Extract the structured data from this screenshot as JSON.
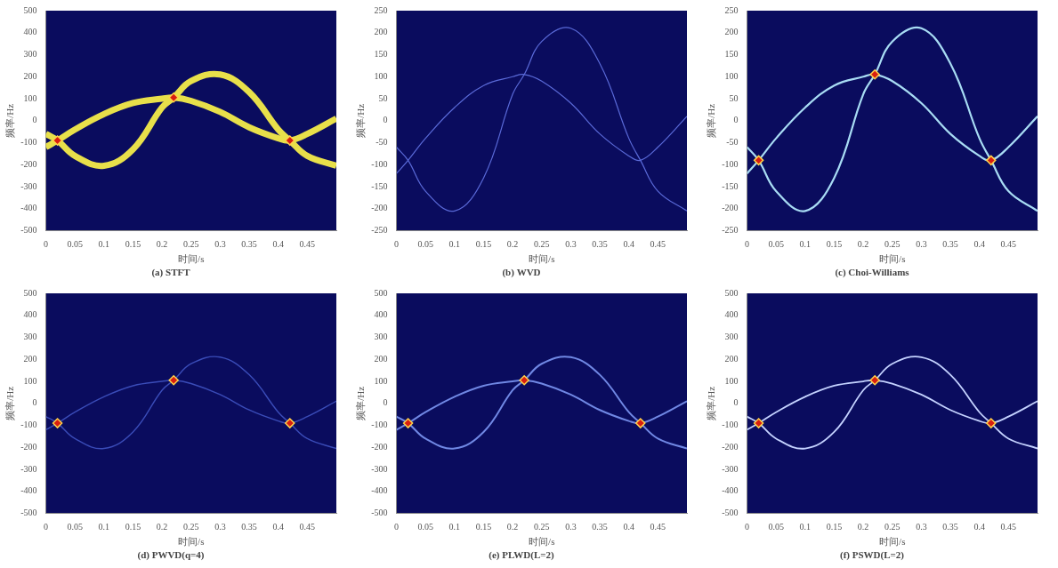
{
  "chart_data": [
    {
      "type": "line",
      "title": "(a) STFT",
      "x_label": "时间/s",
      "y_label": "频率/Hz",
      "xlim": [
        0,
        0.5
      ],
      "xticks": [
        0,
        0.05,
        0.1,
        0.15,
        0.2,
        0.25,
        0.3,
        0.35,
        0.4,
        0.45
      ],
      "ylim": [
        -500,
        500
      ],
      "yticks": [
        -500,
        -400,
        -300,
        -200,
        -100,
        0,
        100,
        200,
        300,
        400,
        500
      ],
      "grid": false,
      "x": [
        0,
        0.02,
        0.05,
        0.1,
        0.15,
        0.2,
        0.22,
        0.25,
        0.3,
        0.35,
        0.4,
        0.42,
        0.45,
        0.5
      ],
      "series": [
        {
          "color": "#e8e04a",
          "line_style": "solid",
          "values": [
            -60,
            -90,
            -160,
            -205,
            -130,
            60,
            105,
            180,
            210,
            130,
            -40,
            -90,
            -160,
            -205
          ]
        },
        {
          "color": "#e8e04a",
          "line_style": "solid",
          "values": [
            -120,
            -90,
            -40,
            30,
            80,
            100,
            105,
            90,
            40,
            -30,
            -80,
            -90,
            -60,
            10
          ]
        },
        {
          "type": "scatter",
          "marker": "diamond",
          "color": "#d81e10",
          "values": [
            null,
            -90,
            null,
            null,
            null,
            null,
            105,
            null,
            null,
            null,
            null,
            -90,
            null,
            null
          ]
        }
      ]
    },
    {
      "type": "line",
      "title": "(b) WVD",
      "x_label": "时间/s",
      "y_label": "频率/Hz",
      "xlim": [
        0,
        0.5
      ],
      "xticks": [
        0,
        0.05,
        0.1,
        0.15,
        0.2,
        0.25,
        0.3,
        0.35,
        0.4,
        0.45
      ],
      "ylim": [
        -250,
        250
      ],
      "yticks": [
        -250,
        -200,
        -150,
        -100,
        -50,
        0,
        50,
        100,
        150,
        200,
        250
      ],
      "grid": false,
      "x": [
        0,
        0.02,
        0.05,
        0.1,
        0.15,
        0.2,
        0.22,
        0.25,
        0.3,
        0.35,
        0.4,
        0.42,
        0.45,
        0.5
      ],
      "series": [
        {
          "color": "#5a6ad8",
          "line_style": "solid",
          "values": [
            -60,
            -90,
            -160,
            -205,
            -130,
            60,
            105,
            180,
            210,
            130,
            -40,
            -90,
            -160,
            -205
          ]
        },
        {
          "color": "#5a6ad8",
          "line_style": "solid",
          "values": [
            -120,
            -90,
            -40,
            30,
            80,
            100,
            105,
            90,
            40,
            -30,
            -80,
            -90,
            -60,
            10
          ]
        }
      ]
    },
    {
      "type": "line",
      "title": "(c) Choi-Williams",
      "x_label": "时间/s",
      "y_label": "频率/Hz",
      "xlim": [
        0,
        0.5
      ],
      "xticks": [
        0,
        0.05,
        0.1,
        0.15,
        0.2,
        0.25,
        0.3,
        0.35,
        0.4,
        0.45
      ],
      "ylim": [
        -250,
        250
      ],
      "yticks": [
        -250,
        -200,
        -150,
        -100,
        -50,
        0,
        50,
        100,
        150,
        200,
        250
      ],
      "grid": false,
      "x": [
        0,
        0.02,
        0.05,
        0.1,
        0.15,
        0.2,
        0.22,
        0.25,
        0.3,
        0.35,
        0.4,
        0.42,
        0.45,
        0.5
      ],
      "series": [
        {
          "color": "#a8dcf4",
          "line_style": "solid",
          "values": [
            -60,
            -90,
            -160,
            -205,
            -130,
            60,
            105,
            180,
            210,
            130,
            -40,
            -90,
            -160,
            -205
          ]
        },
        {
          "color": "#a8dcf4",
          "line_style": "solid",
          "values": [
            -120,
            -90,
            -40,
            30,
            80,
            100,
            105,
            90,
            40,
            -30,
            -80,
            -90,
            -60,
            10
          ]
        },
        {
          "type": "scatter",
          "marker": "diamond",
          "color": "#d81e10",
          "values": [
            null,
            -90,
            null,
            null,
            null,
            null,
            105,
            null,
            null,
            null,
            null,
            -90,
            null,
            null
          ]
        }
      ]
    },
    {
      "type": "line",
      "title": "(d) PWVD(q=4)",
      "x_label": "时间/s",
      "y_label": "频率/Hz",
      "xlim": [
        0,
        0.5
      ],
      "xticks": [
        0,
        0.05,
        0.1,
        0.15,
        0.2,
        0.25,
        0.3,
        0.35,
        0.4,
        0.45
      ],
      "ylim": [
        -500,
        500
      ],
      "yticks": [
        -500,
        -400,
        -300,
        -200,
        -100,
        0,
        100,
        200,
        300,
        400,
        500
      ],
      "grid": false,
      "x": [
        0,
        0.02,
        0.05,
        0.1,
        0.15,
        0.2,
        0.22,
        0.25,
        0.3,
        0.35,
        0.4,
        0.42,
        0.45,
        0.5
      ],
      "series": [
        {
          "color": "#3a4cb8",
          "line_style": "solid",
          "values": [
            -60,
            -90,
            -160,
            -205,
            -130,
            60,
            105,
            180,
            210,
            130,
            -40,
            -90,
            -160,
            -205
          ]
        },
        {
          "color": "#3a4cb8",
          "line_style": "solid",
          "values": [
            -120,
            -90,
            -40,
            30,
            80,
            100,
            105,
            90,
            40,
            -30,
            -80,
            -90,
            -60,
            10
          ]
        },
        {
          "type": "scatter",
          "marker": "diamond",
          "color": "#d81e10",
          "values": [
            null,
            -90,
            null,
            null,
            null,
            null,
            105,
            null,
            null,
            null,
            null,
            -90,
            null,
            null
          ]
        }
      ]
    },
    {
      "type": "line",
      "title": "(e) PLWD(L=2)",
      "x_label": "时间/s",
      "y_label": "频率/Hz",
      "xlim": [
        0,
        0.5
      ],
      "xticks": [
        0,
        0.05,
        0.1,
        0.15,
        0.2,
        0.25,
        0.3,
        0.35,
        0.4,
        0.45
      ],
      "ylim": [
        -500,
        500
      ],
      "yticks": [
        -500,
        -400,
        -300,
        -200,
        -100,
        0,
        100,
        200,
        300,
        400,
        500
      ],
      "grid": false,
      "x": [
        0,
        0.02,
        0.05,
        0.1,
        0.15,
        0.2,
        0.22,
        0.25,
        0.3,
        0.35,
        0.4,
        0.42,
        0.45,
        0.5
      ],
      "series": [
        {
          "color": "#7088e4",
          "line_style": "solid",
          "values": [
            -60,
            -90,
            -160,
            -205,
            -130,
            60,
            105,
            180,
            210,
            130,
            -40,
            -90,
            -160,
            -205
          ]
        },
        {
          "color": "#7088e4",
          "line_style": "solid",
          "values": [
            -120,
            -90,
            -40,
            30,
            80,
            100,
            105,
            90,
            40,
            -30,
            -80,
            -90,
            -60,
            10
          ]
        },
        {
          "type": "scatter",
          "marker": "diamond",
          "color": "#d81e10",
          "values": [
            null,
            -90,
            null,
            null,
            null,
            null,
            105,
            null,
            null,
            null,
            null,
            -90,
            null,
            null
          ]
        }
      ]
    },
    {
      "type": "line",
      "title": "(f) PSWD(L=2)",
      "x_label": "时间/s",
      "y_label": "频率/Hz",
      "xlim": [
        0,
        0.5
      ],
      "xticks": [
        0,
        0.05,
        0.1,
        0.15,
        0.2,
        0.25,
        0.3,
        0.35,
        0.4,
        0.45
      ],
      "ylim": [
        -500,
        500
      ],
      "yticks": [
        -500,
        -400,
        -300,
        -200,
        -100,
        0,
        100,
        200,
        300,
        400,
        500
      ],
      "grid": false,
      "x": [
        0,
        0.02,
        0.05,
        0.1,
        0.15,
        0.2,
        0.22,
        0.25,
        0.3,
        0.35,
        0.4,
        0.42,
        0.45,
        0.5
      ],
      "series": [
        {
          "color": "#c4d2ff",
          "line_style": "solid",
          "values": [
            -60,
            -90,
            -160,
            -205,
            -130,
            60,
            105,
            180,
            210,
            130,
            -40,
            -90,
            -160,
            -205
          ]
        },
        {
          "color": "#c4d2ff",
          "line_style": "solid",
          "values": [
            -120,
            -90,
            -40,
            30,
            80,
            100,
            105,
            90,
            40,
            -30,
            -80,
            -90,
            -60,
            10
          ]
        },
        {
          "type": "scatter",
          "marker": "diamond",
          "color": "#d81e10",
          "values": [
            null,
            -90,
            null,
            null,
            null,
            null,
            105,
            null,
            null,
            null,
            null,
            -90,
            null,
            null
          ]
        }
      ]
    }
  ]
}
